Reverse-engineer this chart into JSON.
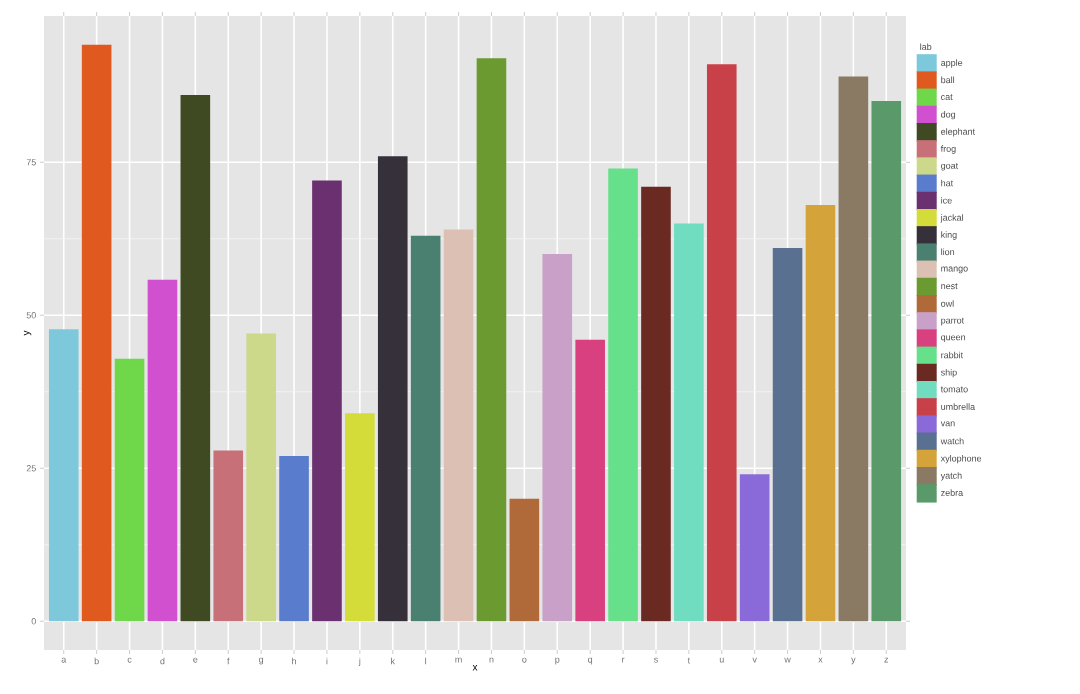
{
  "chart_data": {
    "type": "bar",
    "xlabel": "x",
    "ylabel": "y",
    "legend_title": "lab",
    "categories": [
      "a",
      "b",
      "c",
      "d",
      "e",
      "f",
      "g",
      "h",
      "i",
      "j",
      "k",
      "l",
      "m",
      "n",
      "o",
      "p",
      "q",
      "r",
      "s",
      "t",
      "u",
      "v",
      "w",
      "x",
      "y",
      "z"
    ],
    "ylim": [
      -4.7,
      98.9
    ],
    "yticks": [
      0,
      25,
      50,
      75
    ],
    "grid": true,
    "legend": "right",
    "series": [
      {
        "name": "apple",
        "color": "#7ec8dc",
        "values": [
          47.7,
          null,
          null,
          null,
          null,
          null,
          null,
          null,
          null,
          null,
          null,
          null,
          null,
          null,
          null,
          null,
          null,
          null,
          null,
          null,
          null,
          null,
          null,
          null,
          null,
          null
        ]
      },
      {
        "name": "ball",
        "color": "#e05a20",
        "values": [
          null,
          94.2,
          null,
          null,
          null,
          null,
          null,
          null,
          null,
          null,
          null,
          null,
          null,
          null,
          null,
          null,
          null,
          null,
          null,
          null,
          null,
          null,
          null,
          null,
          null,
          null
        ]
      },
      {
        "name": "cat",
        "color": "#6ed84a",
        "values": [
          null,
          null,
          42.9,
          null,
          null,
          null,
          null,
          null,
          null,
          null,
          null,
          null,
          null,
          null,
          null,
          null,
          null,
          null,
          null,
          null,
          null,
          null,
          null,
          null,
          null,
          null
        ]
      },
      {
        "name": "dog",
        "color": "#d050d0",
        "values": [
          null,
          null,
          null,
          55.8,
          null,
          null,
          null,
          null,
          null,
          null,
          null,
          null,
          null,
          null,
          null,
          null,
          null,
          null,
          null,
          null,
          null,
          null,
          null,
          null,
          null,
          null
        ]
      },
      {
        "name": "elephant",
        "color": "#3f4a22",
        "values": [
          null,
          null,
          null,
          null,
          86,
          null,
          null,
          null,
          null,
          null,
          null,
          null,
          null,
          null,
          null,
          null,
          null,
          null,
          null,
          null,
          null,
          null,
          null,
          null,
          null,
          null
        ]
      },
      {
        "name": "frog",
        "color": "#c87078",
        "values": [
          null,
          null,
          null,
          null,
          null,
          27.9,
          null,
          null,
          null,
          null,
          null,
          null,
          null,
          null,
          null,
          null,
          null,
          null,
          null,
          null,
          null,
          null,
          null,
          null,
          null,
          null
        ]
      },
      {
        "name": "goat",
        "color": "#ccd88a",
        "values": [
          null,
          null,
          null,
          null,
          null,
          null,
          47,
          null,
          null,
          null,
          null,
          null,
          null,
          null,
          null,
          null,
          null,
          null,
          null,
          null,
          null,
          null,
          null,
          null,
          null,
          null
        ]
      },
      {
        "name": "hat",
        "color": "#5a7ccc",
        "values": [
          null,
          null,
          null,
          null,
          null,
          null,
          null,
          27,
          null,
          null,
          null,
          null,
          null,
          null,
          null,
          null,
          null,
          null,
          null,
          null,
          null,
          null,
          null,
          null,
          null,
          null
        ]
      },
      {
        "name": "ice",
        "color": "#6a3070",
        "values": [
          null,
          null,
          null,
          null,
          null,
          null,
          null,
          null,
          72,
          null,
          null,
          null,
          null,
          null,
          null,
          null,
          null,
          null,
          null,
          null,
          null,
          null,
          null,
          null,
          null,
          null
        ]
      },
      {
        "name": "jackal",
        "color": "#d4dc3a",
        "values": [
          null,
          null,
          null,
          null,
          null,
          null,
          null,
          null,
          null,
          34,
          null,
          null,
          null,
          null,
          null,
          null,
          null,
          null,
          null,
          null,
          null,
          null,
          null,
          null,
          null,
          null
        ]
      },
      {
        "name": "king",
        "color": "#35303a",
        "values": [
          null,
          null,
          null,
          null,
          null,
          null,
          null,
          null,
          null,
          null,
          76,
          null,
          null,
          null,
          null,
          null,
          null,
          null,
          null,
          null,
          null,
          null,
          null,
          null,
          null,
          null
        ]
      },
      {
        "name": "lion",
        "color": "#4a8070",
        "values": [
          null,
          null,
          null,
          null,
          null,
          null,
          null,
          null,
          null,
          null,
          null,
          63,
          null,
          null,
          null,
          null,
          null,
          null,
          null,
          null,
          null,
          null,
          null,
          null,
          null,
          null
        ]
      },
      {
        "name": "mango",
        "color": "#dcc0b4",
        "values": [
          null,
          null,
          null,
          null,
          null,
          null,
          null,
          null,
          null,
          null,
          null,
          null,
          64,
          null,
          null,
          null,
          null,
          null,
          null,
          null,
          null,
          null,
          null,
          null,
          null,
          null
        ]
      },
      {
        "name": "nest",
        "color": "#6a9a30",
        "values": [
          null,
          null,
          null,
          null,
          null,
          null,
          null,
          null,
          null,
          null,
          null,
          null,
          null,
          92,
          null,
          null,
          null,
          null,
          null,
          null,
          null,
          null,
          null,
          null,
          null,
          null
        ]
      },
      {
        "name": "owl",
        "color": "#b06a3a",
        "values": [
          null,
          null,
          null,
          null,
          null,
          null,
          null,
          null,
          null,
          null,
          null,
          null,
          null,
          null,
          20,
          null,
          null,
          null,
          null,
          null,
          null,
          null,
          null,
          null,
          null,
          null
        ]
      },
      {
        "name": "parrot",
        "color": "#c8a0c8",
        "values": [
          null,
          null,
          null,
          null,
          null,
          null,
          null,
          null,
          null,
          null,
          null,
          null,
          null,
          null,
          null,
          60,
          null,
          null,
          null,
          null,
          null,
          null,
          null,
          null,
          null,
          null
        ]
      },
      {
        "name": "queen",
        "color": "#d84080",
        "values": [
          null,
          null,
          null,
          null,
          null,
          null,
          null,
          null,
          null,
          null,
          null,
          null,
          null,
          null,
          null,
          null,
          46,
          null,
          null,
          null,
          null,
          null,
          null,
          null,
          null,
          null
        ]
      },
      {
        "name": "rabbit",
        "color": "#66e08a",
        "values": [
          null,
          null,
          null,
          null,
          null,
          null,
          null,
          null,
          null,
          null,
          null,
          null,
          null,
          null,
          null,
          null,
          null,
          74,
          null,
          null,
          null,
          null,
          null,
          null,
          null,
          null
        ]
      },
      {
        "name": "ship",
        "color": "#6a2a22",
        "values": [
          null,
          null,
          null,
          null,
          null,
          null,
          null,
          null,
          null,
          null,
          null,
          null,
          null,
          null,
          null,
          null,
          null,
          null,
          71,
          null,
          null,
          null,
          null,
          null,
          null,
          null
        ]
      },
      {
        "name": "tomato",
        "color": "#70dcc0",
        "values": [
          null,
          null,
          null,
          null,
          null,
          null,
          null,
          null,
          null,
          null,
          null,
          null,
          null,
          null,
          null,
          null,
          null,
          null,
          null,
          65,
          null,
          null,
          null,
          null,
          null,
          null
        ]
      },
      {
        "name": "umbrella",
        "color": "#c84048",
        "values": [
          null,
          null,
          null,
          null,
          null,
          null,
          null,
          null,
          null,
          null,
          null,
          null,
          null,
          null,
          null,
          null,
          null,
          null,
          null,
          null,
          91,
          null,
          null,
          null,
          null,
          null
        ]
      },
      {
        "name": "van",
        "color": "#8a6ad8",
        "values": [
          null,
          null,
          null,
          null,
          null,
          null,
          null,
          null,
          null,
          null,
          null,
          null,
          null,
          null,
          null,
          null,
          null,
          null,
          null,
          null,
          null,
          24,
          null,
          null,
          null,
          null
        ]
      },
      {
        "name": "watch",
        "color": "#5a7090",
        "values": [
          null,
          null,
          null,
          null,
          null,
          null,
          null,
          null,
          null,
          null,
          null,
          null,
          null,
          null,
          null,
          null,
          null,
          null,
          null,
          null,
          null,
          null,
          61,
          null,
          null,
          null
        ]
      },
      {
        "name": "xylophone",
        "color": "#d4a43a",
        "values": [
          null,
          null,
          null,
          null,
          null,
          null,
          null,
          null,
          null,
          null,
          null,
          null,
          null,
          null,
          null,
          null,
          null,
          null,
          null,
          null,
          null,
          null,
          null,
          68,
          null,
          null
        ]
      },
      {
        "name": "yatch",
        "color": "#8a7a64",
        "values": [
          null,
          null,
          null,
          null,
          null,
          null,
          null,
          null,
          null,
          null,
          null,
          null,
          null,
          null,
          null,
          null,
          null,
          null,
          null,
          null,
          null,
          null,
          null,
          null,
          89,
          null
        ]
      },
      {
        "name": "zebra",
        "color": "#5a9a6a",
        "values": [
          null,
          null,
          null,
          null,
          null,
          null,
          null,
          null,
          null,
          null,
          null,
          null,
          null,
          null,
          null,
          null,
          null,
          null,
          null,
          null,
          null,
          null,
          null,
          null,
          null,
          85
        ]
      }
    ]
  }
}
